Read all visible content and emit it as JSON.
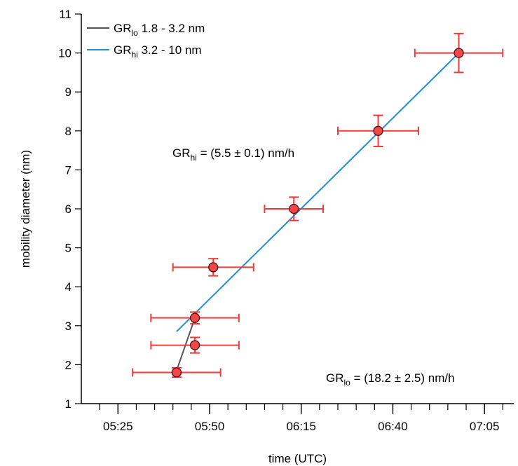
{
  "chart_data": {
    "type": "scatter",
    "xlabel": "time (UTC)",
    "ylabel": "mobility diameter (nm)",
    "x_ticks": [
      "05:25",
      "05:50",
      "06:15",
      "06:40",
      "07:05"
    ],
    "y_ticks": [
      "1",
      "2",
      "3",
      "4",
      "5",
      "6",
      "7",
      "8",
      "9",
      "10",
      "11"
    ],
    "xlim": [
      "05:15",
      "07:13"
    ],
    "ylim": [
      1,
      11
    ],
    "grid": false,
    "legend_position": "top-left",
    "legend": [
      {
        "sub_base": "GR",
        "sub": "lo",
        "text": " 1.8 - 3.2 nm",
        "color": "#555555"
      },
      {
        "sub_base": "GR",
        "sub": "hi",
        "text": " 3.2 - 10 nm",
        "color": "#1f8fd0"
      }
    ],
    "annotations": [
      {
        "base": "GR",
        "sub": "hi",
        "text": " = (5.5 ± 0.1) nm/h"
      },
      {
        "base": "GR",
        "sub": "lo",
        "text": " = (18.2 ± 2.5) nm/h"
      }
    ],
    "points": [
      {
        "x": "05:41",
        "y": 1.8,
        "x_err_min": 12,
        "y_err": 0.12
      },
      {
        "x": "05:46",
        "y": 2.5,
        "x_err_min": 12,
        "y_err": 0.2
      },
      {
        "x": "05:46",
        "y": 3.2,
        "x_err_min": 12,
        "y_err": 0.15
      },
      {
        "x": "05:51",
        "y": 4.5,
        "x_err_min": 11,
        "y_err": 0.22
      },
      {
        "x": "06:13",
        "y": 6.0,
        "x_err_min": 8,
        "y_err": 0.3
      },
      {
        "x": "06:36",
        "y": 8.0,
        "x_err_min": 11,
        "y_err": 0.4
      },
      {
        "x": "06:58",
        "y": 10.0,
        "x_err_min": 12,
        "y_err": 0.5
      }
    ],
    "fit_lines": [
      {
        "name": "GR_lo",
        "color": "#555555",
        "from": {
          "x": "05:41",
          "y": 1.85
        },
        "to": {
          "x": "05:46",
          "y": 3.2
        }
      },
      {
        "name": "GR_hi",
        "color": "#1f8fd0",
        "from": {
          "x": "05:41",
          "y": 2.85
        },
        "to": {
          "x": "06:58",
          "y": 10.0
        }
      }
    ],
    "colors": {
      "marker_fill": "#f04848",
      "marker_edge": "#4a1010",
      "error_bar": "#ee3a3a"
    }
  }
}
